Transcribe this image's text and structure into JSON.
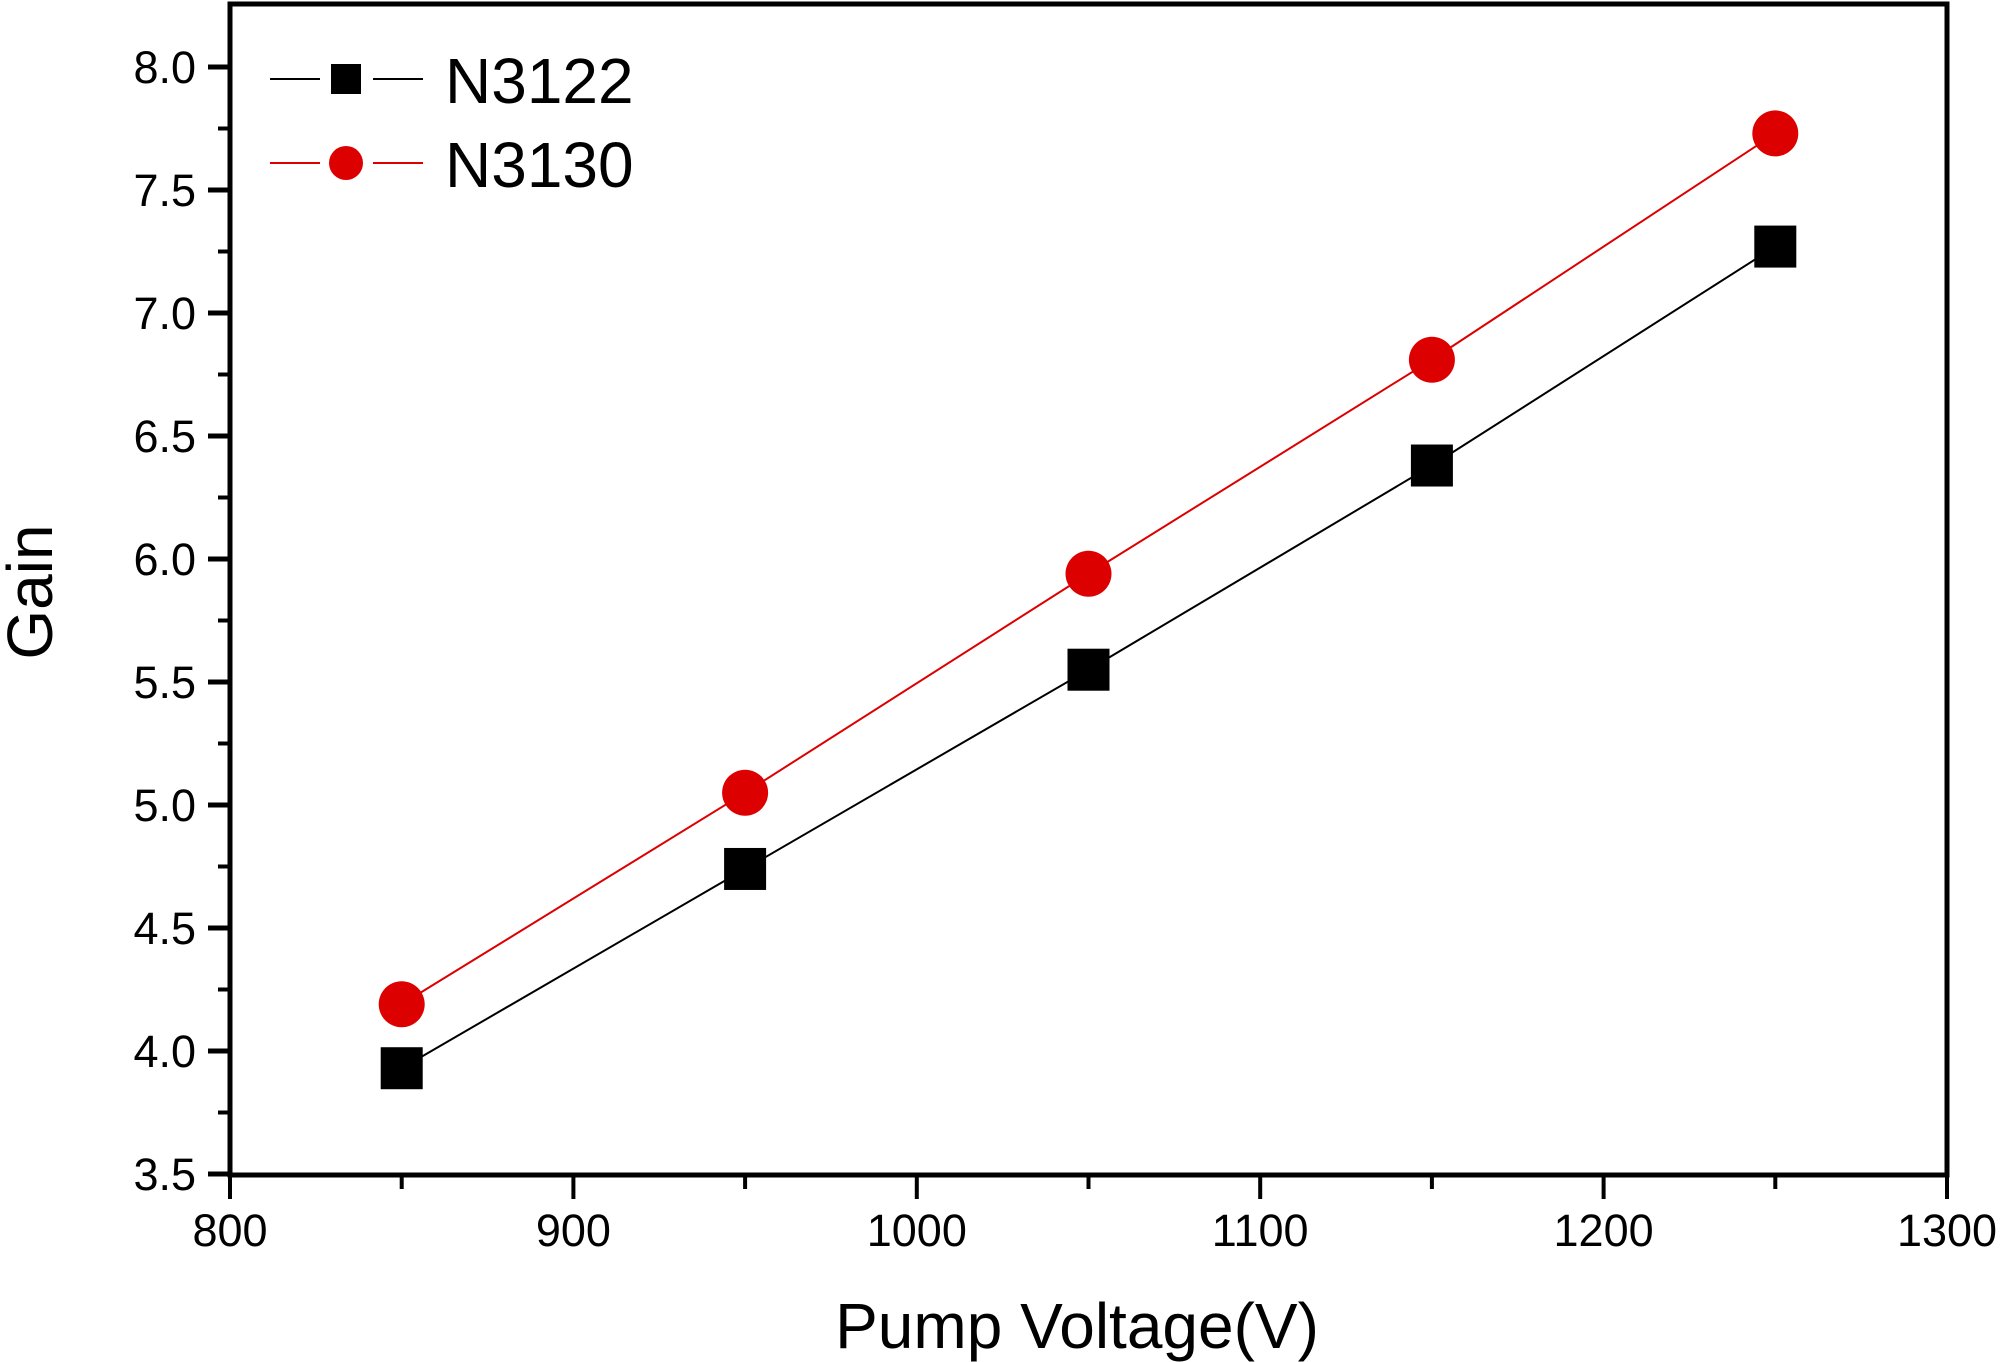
{
  "chart_data": {
    "type": "line",
    "title": "",
    "xlabel": "Pump Voltage(V)",
    "ylabel": "Gain",
    "xlim": [
      800,
      1300
    ],
    "ylim": [
      3.5,
      8.2
    ],
    "x_ticks": [
      800,
      900,
      1000,
      1100,
      1200,
      1300
    ],
    "x_tick_labels": [
      "800",
      "900",
      "1000",
      "1100",
      "1200",
      "1300"
    ],
    "x_minor_ticks": [
      850,
      950,
      1050,
      1150,
      1250
    ],
    "y_ticks": [
      3.5,
      4.0,
      4.5,
      5.0,
      5.5,
      6.0,
      6.5,
      7.0,
      7.5,
      8.0
    ],
    "y_tick_labels": [
      "3.5",
      "4.0",
      "4.5",
      "5.0",
      "5.5",
      "6.0",
      "6.5",
      "7.0",
      "7.5",
      "8.0"
    ],
    "y_minor_ticks": [
      3.75,
      4.25,
      4.75,
      5.25,
      5.75,
      6.25,
      6.75,
      7.25,
      7.75
    ],
    "grid": false,
    "legend_position": "top-left",
    "x": [
      850,
      950,
      1050,
      1150,
      1250
    ],
    "series": [
      {
        "name": "N3122",
        "values": [
          3.93,
          4.74,
          5.55,
          6.38,
          7.27
        ],
        "color": "#000000",
        "marker": "square"
      },
      {
        "name": "N3130",
        "values": [
          4.19,
          5.05,
          5.94,
          6.81,
          7.73
        ],
        "color": "#dd0000",
        "marker": "circle"
      }
    ]
  }
}
